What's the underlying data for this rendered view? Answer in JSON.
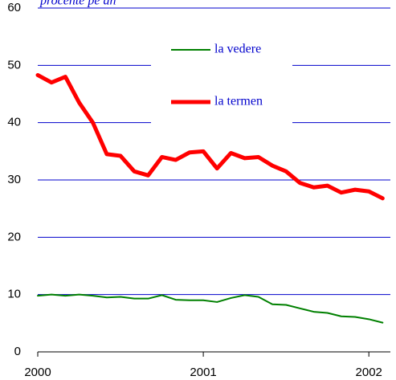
{
  "chart_data": {
    "type": "line",
    "subtitle": "procente pe an",
    "x": [
      2000,
      2000.083,
      2000.167,
      2000.25,
      2000.333,
      2000.417,
      2000.5,
      2000.583,
      2000.667,
      2000.75,
      2000.833,
      2000.917,
      2001,
      2001.083,
      2001.167,
      2001.25,
      2001.333,
      2001.417,
      2001.5,
      2001.583,
      2001.667,
      2001.75,
      2001.833,
      2001.917,
      2002,
      2002.083
    ],
    "xlim": [
      2000,
      2002.13
    ],
    "xticks": [
      2000,
      2001,
      2002
    ],
    "ylim": [
      0,
      60
    ],
    "yticks": [
      0,
      10,
      20,
      30,
      40,
      50,
      60
    ],
    "grid": true,
    "series": [
      {
        "name": "la vedere",
        "color": "#008000",
        "width": 2,
        "values": [
          9.8,
          10,
          9.8,
          10,
          9.8,
          9.5,
          9.6,
          9.3,
          9.3,
          9.9,
          9.1,
          9.0,
          9.0,
          8.7,
          9.4,
          9.9,
          9.6,
          8.3,
          8.2,
          7.6,
          7.0,
          6.8,
          6.2,
          6.1,
          5.7,
          5.1
        ]
      },
      {
        "name": "la termen",
        "color": "#ff0000",
        "width": 5,
        "values": [
          48.3,
          47,
          48,
          43.5,
          40,
          34.5,
          34.2,
          31.5,
          30.8,
          34,
          33.5,
          34.8,
          35,
          32,
          34.7,
          33.8,
          34,
          32.5,
          31.5,
          29.5,
          28.7,
          29,
          27.8,
          28.3,
          28,
          26.8
        ]
      }
    ]
  }
}
